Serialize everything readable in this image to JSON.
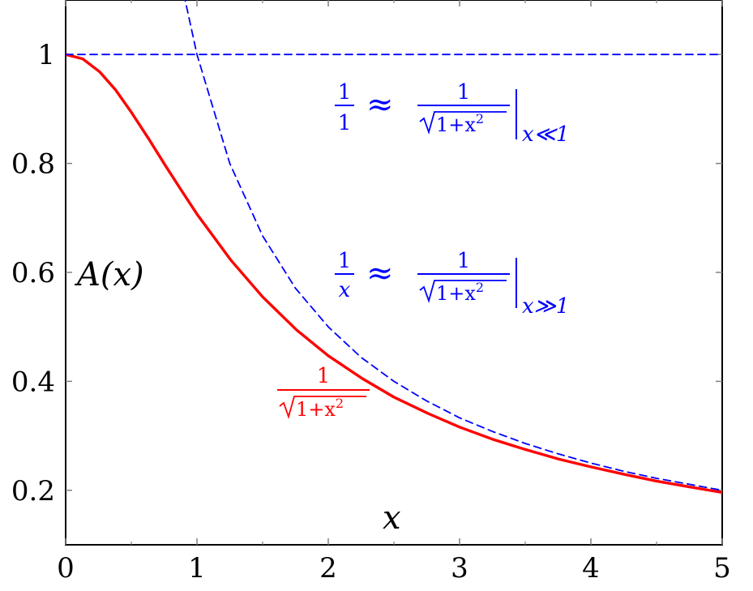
{
  "chart_data": {
    "type": "line",
    "xlabel": "x",
    "ylabel": "A(x)",
    "xlim": [
      0,
      5
    ],
    "ylim": [
      0.1,
      1.1
    ],
    "x_ticks": [
      0,
      1,
      2,
      3,
      4,
      5
    ],
    "x_tick_labels": [
      "0",
      "1",
      "2",
      "3",
      "4",
      "5"
    ],
    "y_ticks": [
      0.2,
      0.4,
      0.6,
      0.8,
      1
    ],
    "y_tick_labels": [
      "0.2",
      "0.4",
      "0.6",
      "0.8",
      "1"
    ],
    "grid": false,
    "series": [
      {
        "formula": "1/sqrt(1+x^2)",
        "color": "#ff0000",
        "style": "solid",
        "x": [
          0,
          0.13,
          0.26,
          0.38,
          0.5,
          0.63,
          0.76,
          0.88,
          1.0,
          1.26,
          1.5,
          1.76,
          2.0,
          2.26,
          2.5,
          2.76,
          3.0,
          3.26,
          3.5,
          3.76,
          4.0,
          4.26,
          4.5,
          4.76,
          5.0
        ],
        "y": [
          1.0,
          0.992,
          0.968,
          0.935,
          0.894,
          0.846,
          0.796,
          0.751,
          0.707,
          0.622,
          0.555,
          0.494,
          0.447,
          0.405,
          0.371,
          0.341,
          0.316,
          0.293,
          0.275,
          0.257,
          0.243,
          0.229,
          0.217,
          0.206,
          0.196
        ]
      },
      {
        "formula": "1/x",
        "color": "#0000ff",
        "style": "dashed",
        "x": [
          0.9,
          1.0,
          1.25,
          1.5,
          1.75,
          2.0,
          2.25,
          2.5,
          2.75,
          3.0,
          3.25,
          3.5,
          3.75,
          4.0,
          4.25,
          4.5,
          4.75,
          5.0
        ],
        "y": [
          1.111,
          1.0,
          0.8,
          0.667,
          0.571,
          0.5,
          0.444,
          0.4,
          0.364,
          0.333,
          0.308,
          0.286,
          0.267,
          0.25,
          0.235,
          0.222,
          0.211,
          0.2
        ]
      },
      {
        "formula": "1",
        "color": "#0000ff",
        "style": "dashed",
        "x": [
          0,
          5
        ],
        "y": [
          1,
          1
        ]
      }
    ],
    "annotations": {
      "small_x": {
        "lhs_num": "1",
        "lhs_den": "1",
        "approx": "≈",
        "rhs_num": "1",
        "rhs_den_base": "1+x",
        "rhs_den_exp": "2",
        "subscript": "x≪1"
      },
      "large_x": {
        "lhs_num": "1",
        "lhs_den": "x",
        "approx": "≈",
        "rhs_num": "1",
        "rhs_den_base": "1+x",
        "rhs_den_exp": "2",
        "subscript": "x≫1"
      },
      "curve": {
        "num": "1",
        "den_base": "1+x",
        "den_exp": "2"
      }
    }
  }
}
